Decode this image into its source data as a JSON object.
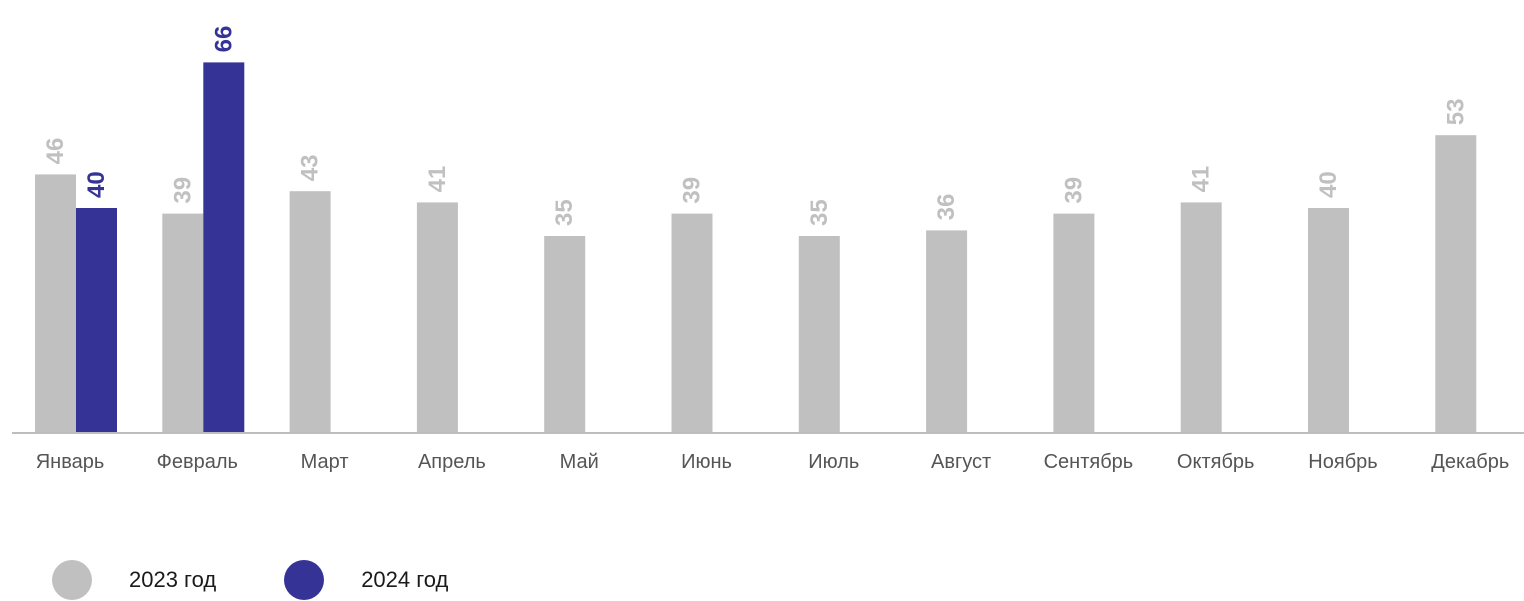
{
  "chart_data": {
    "type": "bar",
    "categories": [
      "Январь",
      "Февраль",
      "Март",
      "Апрель",
      "Май",
      "Июнь",
      "Июль",
      "Август",
      "Сентябрь",
      "Октябрь",
      "Ноябрь",
      "Декабрь"
    ],
    "series": [
      {
        "name": "2023 год",
        "color": "#c0c0c0",
        "values": [
          46,
          39,
          43,
          41,
          35,
          39,
          35,
          36,
          39,
          41,
          40,
          53
        ]
      },
      {
        "name": "2024 год",
        "color": "#353396",
        "values": [
          40,
          66,
          null,
          null,
          null,
          null,
          null,
          null,
          null,
          null,
          null,
          null
        ]
      }
    ],
    "title": "",
    "xlabel": "",
    "ylabel": "",
    "value_labels": true,
    "grid": false,
    "legend_position": "bottom-left"
  }
}
